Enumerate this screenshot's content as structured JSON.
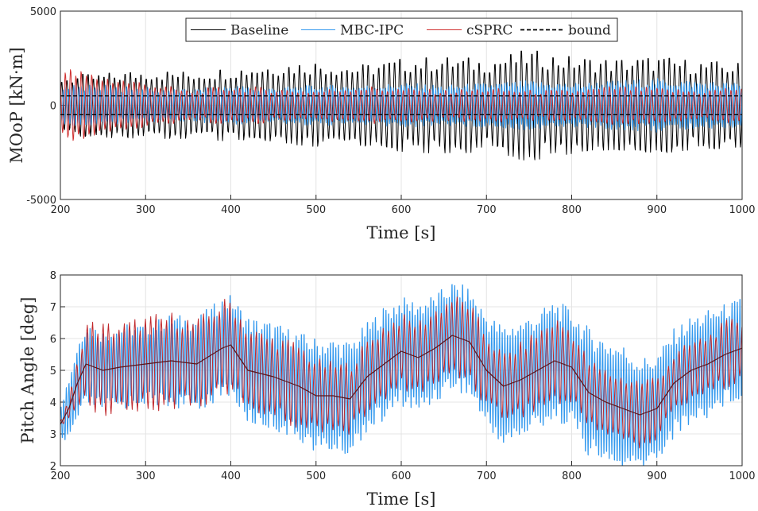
{
  "chart_data": [
    {
      "type": "line",
      "xlabel": "Time [s]",
      "ylabel": "MOoP [kN·m]",
      "xlim": [
        200,
        1000
      ],
      "ylim": [
        -5000,
        5000
      ],
      "xticks": [
        "200",
        "300",
        "400",
        "500",
        "600",
        "700",
        "800",
        "900",
        "1000"
      ],
      "yticks": [
        "5000",
        "0",
        "-5000"
      ],
      "grid": true,
      "legend_position": "top",
      "legend_orientation": "horizontal",
      "series": [
        {
          "name": "Baseline",
          "color": "#000000",
          "style": "solid",
          "x": [
            200,
            250,
            300,
            350,
            400,
            450,
            500,
            550,
            600,
            650,
            700,
            750,
            800,
            850,
            900,
            950,
            1000
          ],
          "amplitude": [
            1400,
            1500,
            1700,
            1600,
            1800,
            2000,
            2100,
            1900,
            2200,
            2300,
            2200,
            2600,
            2300,
            2200,
            2300,
            2100,
            2000
          ],
          "period": 6.2
        },
        {
          "name": "MBC-IPC",
          "color": "#3399ee",
          "style": "solid",
          "x": [
            200,
            250,
            300,
            350,
            400,
            450,
            500,
            550,
            600,
            650,
            700,
            750,
            800,
            850,
            900,
            950,
            1000
          ],
          "amplitude": [
            1000,
            900,
            800,
            700,
            900,
            800,
            900,
            900,
            1000,
            900,
            1000,
            1100,
            1000,
            1100,
            1200,
            1100,
            1000
          ],
          "period": 3.1
        },
        {
          "name": "cSPRC",
          "color": "#d03030",
          "style": "solid",
          "x": [
            200,
            250,
            300,
            350,
            400,
            450,
            500,
            550,
            600,
            650,
            700,
            750,
            800,
            850,
            900,
            950,
            1000
          ],
          "amplitude": [
            1800,
            1400,
            1100,
            700,
            900,
            800,
            700,
            900,
            800,
            700,
            800,
            700,
            700,
            900,
            800,
            700,
            900
          ],
          "period": 6.2
        },
        {
          "name": "bound",
          "color": "#000000",
          "style": "dashed",
          "values": [
            500,
            -500
          ]
        }
      ]
    },
    {
      "type": "line",
      "xlabel": "Time [s]",
      "ylabel": "Pitch Angle [deg]",
      "xlim": [
        200,
        1000
      ],
      "ylim": [
        2,
        8
      ],
      "xticks": [
        "200",
        "300",
        "400",
        "500",
        "600",
        "700",
        "800",
        "900",
        "1000"
      ],
      "yticks": [
        "8",
        "7",
        "6",
        "5",
        "4",
        "3",
        "2"
      ],
      "grid": true,
      "series": [
        {
          "color": "#3399ee",
          "style": "solid",
          "x": [
            200,
            210,
            220,
            230,
            250,
            270,
            300,
            330,
            360,
            390,
            400,
            420,
            450,
            480,
            500,
            520,
            540,
            560,
            580,
            600,
            620,
            640,
            660,
            680,
            700,
            720,
            740,
            760,
            780,
            800,
            820,
            840,
            860,
            880,
            900,
            920,
            940,
            960,
            980,
            1000
          ],
          "mean": [
            3.3,
            3.8,
            4.6,
            5.2,
            5.0,
            5.1,
            5.2,
            5.3,
            5.2,
            5.7,
            5.8,
            5.0,
            4.8,
            4.5,
            4.2,
            4.2,
            4.1,
            4.8,
            5.2,
            5.6,
            5.4,
            5.7,
            6.1,
            5.9,
            5.0,
            4.5,
            4.7,
            5.0,
            5.3,
            5.1,
            4.3,
            4.0,
            3.8,
            3.6,
            3.8,
            4.6,
            5.0,
            5.2,
            5.5,
            5.7
          ],
          "amplitude": [
            0.6,
            0.9,
            1.1,
            1.2,
            1.1,
            1.2,
            1.1,
            1.3,
            1.3,
            1.4,
            1.4,
            1.5,
            1.5,
            1.5,
            1.6,
            1.6,
            1.6,
            1.5,
            1.6,
            1.5,
            1.6,
            1.5,
            1.5,
            1.5,
            1.6,
            1.7,
            1.7,
            1.6,
            1.7,
            1.6,
            1.8,
            1.8,
            1.8,
            1.6,
            1.5,
            1.5,
            1.5,
            1.5,
            1.4,
            1.4
          ],
          "period": 3.1
        },
        {
          "color": "#c0282c",
          "style": "solid",
          "x": [
            200,
            210,
            220,
            230,
            250,
            270,
            300,
            330,
            360,
            390,
            400,
            420,
            450,
            480,
            500,
            520,
            540,
            560,
            580,
            600,
            620,
            640,
            660,
            680,
            700,
            720,
            740,
            760,
            780,
            800,
            820,
            840,
            860,
            880,
            900,
            920,
            940,
            960,
            980,
            1000
          ],
          "mean": [
            3.3,
            3.8,
            4.6,
            5.2,
            5.0,
            5.1,
            5.2,
            5.3,
            5.2,
            5.7,
            5.8,
            5.0,
            4.8,
            4.5,
            4.2,
            4.2,
            4.1,
            4.8,
            5.2,
            5.6,
            5.4,
            5.7,
            6.1,
            5.9,
            5.0,
            4.5,
            4.7,
            5.0,
            5.3,
            5.1,
            4.3,
            4.0,
            3.8,
            3.6,
            3.8,
            4.6,
            5.0,
            5.2,
            5.5,
            5.7
          ],
          "amplitude": [
            0.1,
            0.3,
            0.6,
            1.2,
            1.3,
            1.2,
            1.3,
            1.3,
            1.2,
            1.3,
            1.3,
            1.2,
            1.1,
            1.2,
            1.0,
            0.9,
            1.0,
            1.0,
            1.1,
            1.0,
            1.0,
            1.1,
            1.1,
            1.1,
            1.0,
            0.9,
            1.0,
            1.1,
            1.2,
            1.1,
            0.9,
            0.9,
            0.9,
            1.0,
            0.9,
            0.8,
            0.8,
            0.8,
            0.9,
            0.9
          ],
          "period": 6.2
        },
        {
          "color": "#5a1418",
          "style": "solid",
          "x": [
            200,
            210,
            220,
            230,
            250,
            270,
            300,
            330,
            360,
            390,
            400,
            420,
            450,
            480,
            500,
            520,
            540,
            560,
            580,
            600,
            620,
            640,
            660,
            680,
            700,
            720,
            740,
            760,
            780,
            800,
            820,
            840,
            860,
            880,
            900,
            920,
            940,
            960,
            980,
            1000
          ],
          "values": [
            3.3,
            3.8,
            4.6,
            5.2,
            5.0,
            5.1,
            5.2,
            5.3,
            5.2,
            5.7,
            5.8,
            5.0,
            4.8,
            4.5,
            4.2,
            4.2,
            4.1,
            4.8,
            5.2,
            5.6,
            5.4,
            5.7,
            6.1,
            5.9,
            5.0,
            4.5,
            4.7,
            5.0,
            5.3,
            5.1,
            4.3,
            4.0,
            3.8,
            3.6,
            3.8,
            4.6,
            5.0,
            5.2,
            5.5,
            5.7
          ]
        }
      ]
    }
  ]
}
